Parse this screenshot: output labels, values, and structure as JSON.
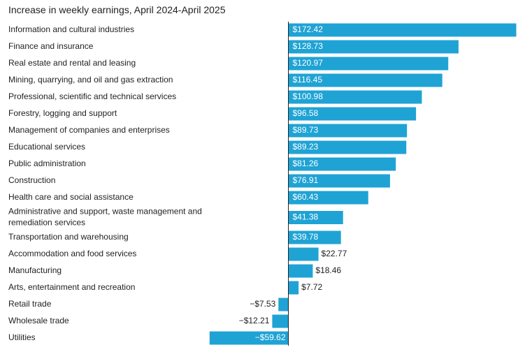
{
  "chart_data": {
    "type": "bar",
    "orientation": "horizontal",
    "title": "Increase in weekly earnings, April 2024-April 2025",
    "xlabel": "",
    "ylabel": "",
    "grid": false,
    "bar_color": "#1fa3d4",
    "categories": [
      [
        "Information and cultural industries"
      ],
      [
        "Finance and insurance"
      ],
      [
        "Real estate and rental and leasing"
      ],
      [
        "Mining, quarrying, and oil and gas extraction"
      ],
      [
        "Professional, scientific and technical services"
      ],
      [
        "Forestry, logging and support"
      ],
      [
        "Management of companies and enterprises"
      ],
      [
        "Educational services"
      ],
      [
        "Public administration"
      ],
      [
        "Construction"
      ],
      [
        "Health care and social assistance"
      ],
      [
        "Administrative and support, waste management and",
        "remediation services"
      ],
      [
        "Transportation and warehousing"
      ],
      [
        "Accommodation and food services"
      ],
      [
        "Manufacturing"
      ],
      [
        "Arts, entertainment and recreation"
      ],
      [
        "Retail trade"
      ],
      [
        "Wholesale trade"
      ],
      [
        "Utilities"
      ]
    ],
    "values": [
      172.42,
      128.73,
      120.97,
      116.45,
      100.98,
      96.58,
      89.73,
      89.23,
      81.26,
      76.91,
      60.43,
      41.38,
      39.78,
      22.77,
      18.46,
      7.72,
      -7.53,
      -12.21,
      -59.62
    ],
    "value_labels": [
      "$172.42",
      "$128.73",
      "$120.97",
      "$116.45",
      "$100.98",
      "$96.58",
      "$89.73",
      "$89.23",
      "$81.26",
      "$76.91",
      "$60.43",
      "$41.38",
      "$39.78",
      "$22.77",
      "$18.46",
      "$7.72",
      "−$7.53",
      "−$12.21",
      "−$59.62"
    ],
    "xlim": [
      -60,
      175
    ]
  }
}
